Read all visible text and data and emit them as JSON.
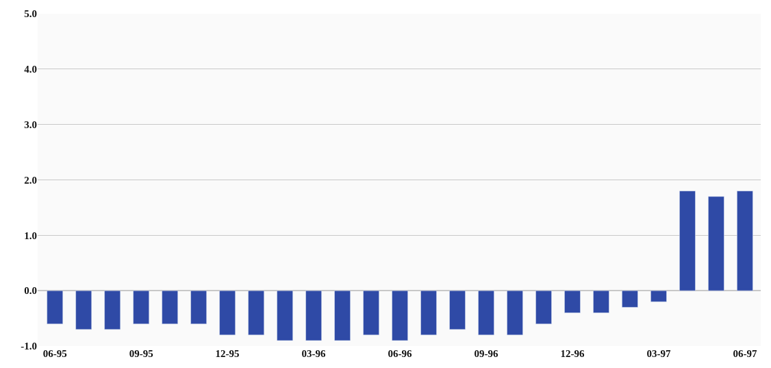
{
  "chart_data": {
    "type": "bar",
    "categories": [
      "06-95",
      null,
      null,
      "09-95",
      null,
      null,
      "12-95",
      null,
      null,
      "03-96",
      null,
      null,
      "06-96",
      null,
      null,
      "09-96",
      null,
      null,
      "12-96",
      null,
      null,
      "03-97",
      null,
      null,
      "06-97"
    ],
    "values": [
      -0.6,
      -0.7,
      -0.7,
      -0.6,
      -0.6,
      -0.6,
      -0.8,
      -0.8,
      -0.9,
      -0.9,
      -0.9,
      -0.8,
      -0.9,
      -0.8,
      -0.7,
      -0.8,
      -0.8,
      -0.6,
      -0.4,
      -0.4,
      -0.3,
      -0.2,
      1.8,
      1.7,
      1.8
    ],
    "color": "#2f4aa6",
    "ylim": [
      -1.0,
      5.0
    ],
    "yticks": [
      {
        "value": -1.0,
        "label": "-1.0"
      },
      {
        "value": 0,
        "label": "0.0"
      },
      {
        "value": 1.0,
        "label": "1.0"
      },
      {
        "value": 2.0,
        "label": "2.0"
      },
      {
        "value": 3.0,
        "label": "3.0"
      },
      {
        "value": 4.0,
        "label": "4.0"
      },
      {
        "value": 5.0,
        "label": "5.0"
      }
    ],
    "grid": "y"
  }
}
